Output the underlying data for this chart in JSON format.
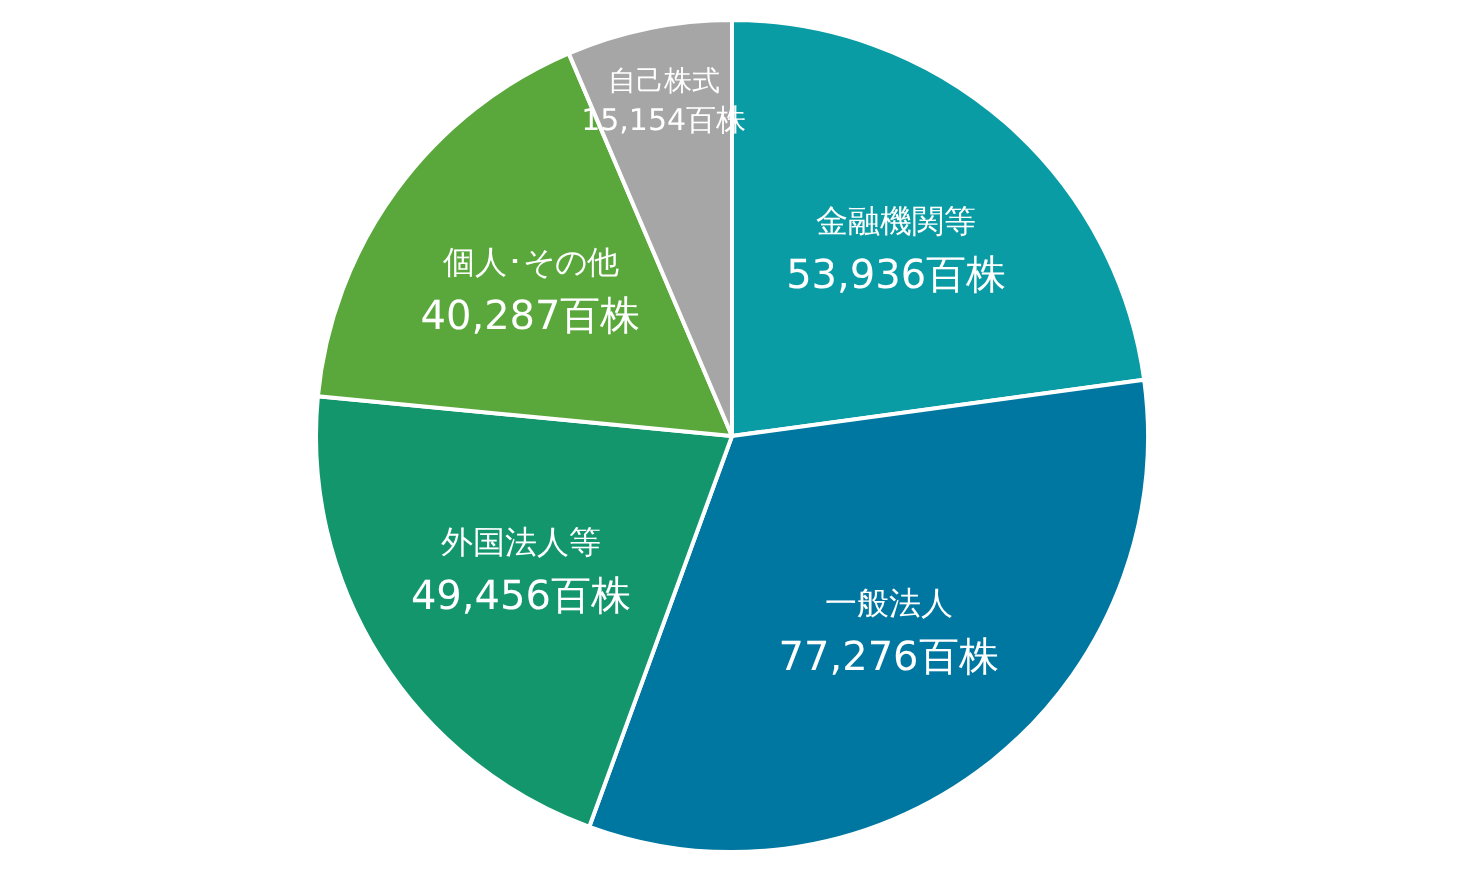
{
  "chart_data": {
    "type": "pie",
    "categories": [
      "金融機関等",
      "一般法人",
      "外国法人等",
      "個人･その他",
      "自己株式"
    ],
    "values": [
      53936,
      77276,
      49456,
      40287,
      15154
    ],
    "value_labels": [
      "53,936百株",
      "77,276百株",
      "49,456百株",
      "40,287百株",
      "15,154百株"
    ],
    "colors": [
      "#0a9ca4",
      "#0077a0",
      "#14966c",
      "#5aa83c",
      "#a6a6a6"
    ],
    "legend": false
  }
}
